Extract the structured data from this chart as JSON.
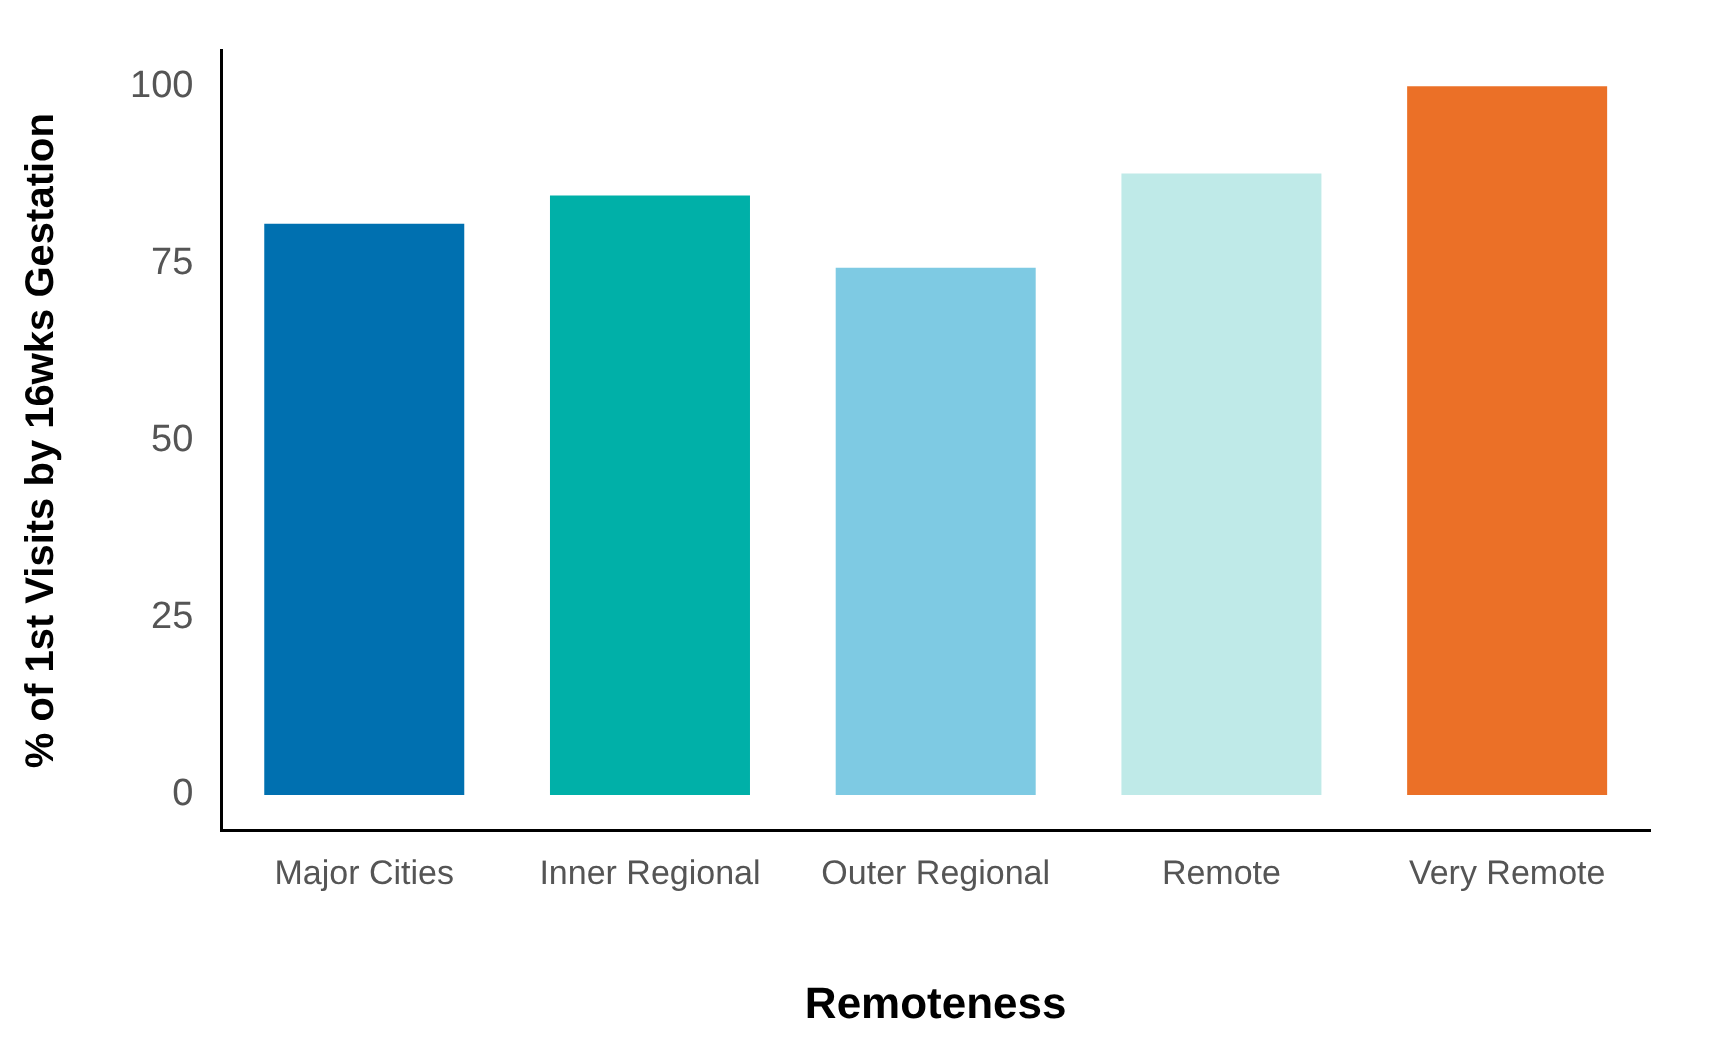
{
  "chart_data": {
    "type": "bar",
    "xlabel": "Remoteness",
    "ylabel": "% of 1st Visits by 16wks Gestation",
    "categories": [
      "Major Cities",
      "Inner Regional",
      "Outer Regional",
      "Remote",
      "Very Remote"
    ],
    "values": [
      80.6,
      84.6,
      74.4,
      87.7,
      100
    ],
    "colors": [
      "#0070b0",
      "#00b0a8",
      "#7ecae3",
      "#bfeae8",
      "#eb7027"
    ],
    "ylim": [
      -5,
      105
    ],
    "yticks": [
      0,
      25,
      50,
      75,
      100
    ],
    "grid": false,
    "legend": false
  }
}
